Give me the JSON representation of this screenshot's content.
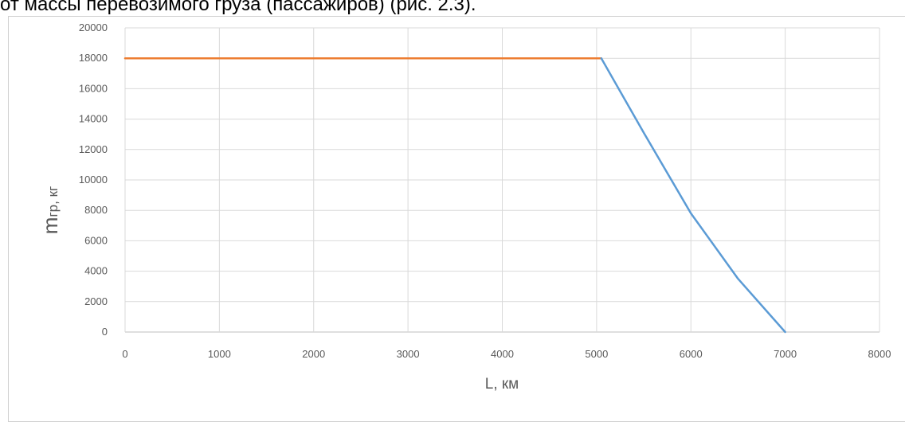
{
  "caption": {
    "text": "от массы перевозимого груза (пассажиров) (рис. 2.3)."
  },
  "chart_data": {
    "type": "line",
    "xlabel": "L, км",
    "ylabel_main": "m",
    "ylabel_sub": "гр, кг",
    "xlim": [
      0,
      8000
    ],
    "ylim": [
      0,
      20000
    ],
    "x_ticks": [
      0,
      1000,
      2000,
      3000,
      4000,
      5000,
      6000,
      7000,
      8000
    ],
    "y_ticks": [
      0,
      2000,
      4000,
      6000,
      8000,
      10000,
      12000,
      14000,
      16000,
      18000,
      20000
    ],
    "grid": true,
    "legend": "none",
    "series": [
      {
        "color": "#ed7d31",
        "points": [
          [
            0,
            18000
          ],
          [
            5050,
            18000
          ]
        ]
      },
      {
        "color": "#5b9bd5",
        "points": [
          [
            5050,
            18000
          ],
          [
            5500,
            13100
          ],
          [
            6000,
            7800
          ],
          [
            6500,
            3500
          ],
          [
            7000,
            0
          ]
        ]
      }
    ]
  }
}
